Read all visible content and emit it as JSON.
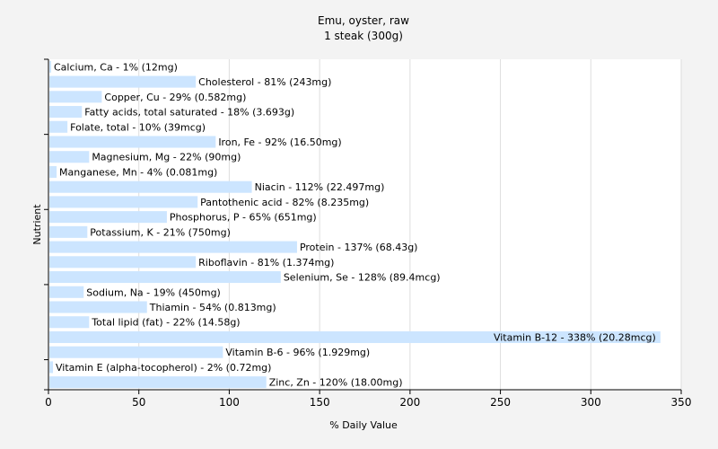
{
  "chart_data": {
    "type": "bar",
    "orientation": "horizontal",
    "title": "Emu, oyster, raw",
    "subtitle": "1 steak (300g)",
    "xlabel": "% Daily Value",
    "ylabel": "Nutrient",
    "xlim": [
      0,
      350
    ],
    "xticks": [
      0,
      50,
      100,
      150,
      200,
      250,
      300,
      350
    ],
    "grid": true,
    "bar_color": "#cce5ff",
    "categories": [
      "Calcium, Ca",
      "Cholesterol",
      "Copper, Cu",
      "Fatty acids, total saturated",
      "Folate, total",
      "Iron, Fe",
      "Magnesium, Mg",
      "Manganese, Mn",
      "Niacin",
      "Pantothenic acid",
      "Phosphorus, P",
      "Potassium, K",
      "Protein",
      "Riboflavin",
      "Selenium, Se",
      "Sodium, Na",
      "Thiamin",
      "Total lipid (fat)",
      "Vitamin B-12",
      "Vitamin B-6",
      "Vitamin E (alpha-tocopherol)",
      "Zinc, Zn"
    ],
    "values": [
      1,
      81,
      29,
      18,
      10,
      92,
      22,
      4,
      112,
      82,
      65,
      21,
      137,
      81,
      128,
      19,
      54,
      22,
      338,
      96,
      2,
      120
    ],
    "labels": [
      "Calcium, Ca - 1% (12mg)",
      "Cholesterol - 81% (243mg)",
      "Copper, Cu - 29% (0.582mg)",
      "Fatty acids, total saturated - 18% (3.693g)",
      "Folate, total - 10% (39mcg)",
      "Iron, Fe - 92% (16.50mg)",
      "Magnesium, Mg - 22% (90mg)",
      "Manganese, Mn - 4% (0.081mg)",
      "Niacin - 112% (22.497mg)",
      "Pantothenic acid - 82% (8.235mg)",
      "Phosphorus, P - 65% (651mg)",
      "Potassium, K - 21% (750mg)",
      "Protein - 137% (68.43g)",
      "Riboflavin - 81% (1.374mg)",
      "Selenium, Se - 128% (89.4mcg)",
      "Sodium, Na - 19% (450mg)",
      "Thiamin - 54% (0.813mg)",
      "Total lipid (fat) - 22% (14.58g)",
      "Vitamin B-12 - 338% (20.28mcg)",
      "Vitamin B-6 - 96% (1.929mg)",
      "Vitamin E (alpha-tocopherol) - 2% (0.72mg)",
      "Zinc, Zn - 120% (18.00mg)"
    ]
  }
}
